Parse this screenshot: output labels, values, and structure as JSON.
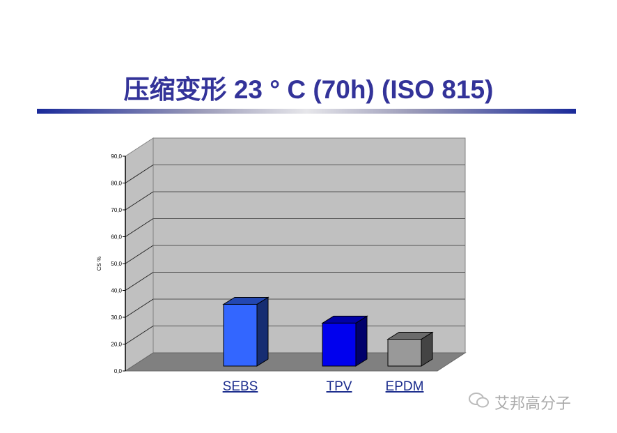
{
  "title": "压缩变形 23 ° C (70h) (ISO 815)",
  "watermark": "艾邦高分子",
  "chart_data": {
    "type": "bar",
    "style": "3d",
    "title": "",
    "xlabel": "",
    "ylabel": "CS %",
    "yticks": [
      "0,0",
      "20,0",
      "30,0",
      "40,0",
      "50,0",
      "60,0",
      "70,0",
      "80,0",
      "90,0"
    ],
    "ytick_values": [
      0,
      20,
      30,
      40,
      50,
      60,
      70,
      80,
      90
    ],
    "ylim": [
      0,
      90
    ],
    "grid": true,
    "categories": [
      "SEBS",
      "TPV",
      "EPDM"
    ],
    "values": [
      33,
      26,
      20
    ],
    "colors": [
      "#3366ff",
      "#0000ee",
      "#999999"
    ]
  }
}
